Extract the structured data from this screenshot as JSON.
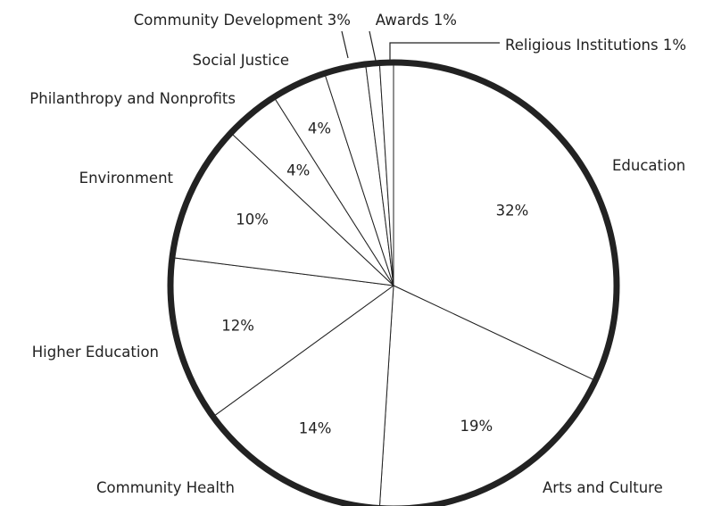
{
  "chart_data": {
    "type": "pie",
    "start": "12 o'clock",
    "direction": "clockwise",
    "slices": [
      {
        "label": "Education",
        "value": 32,
        "value_label": "32%"
      },
      {
        "label": "Arts and Culture",
        "value": 19,
        "value_label": "19%"
      },
      {
        "label": "Community Health",
        "value": 14,
        "value_label": "14%"
      },
      {
        "label": "Higher Education",
        "value": 12,
        "value_label": "12%"
      },
      {
        "label": "Environment",
        "value": 10,
        "value_label": "10%"
      },
      {
        "label": "Philanthropy and Nonprofits",
        "value": 4,
        "value_label": "4%"
      },
      {
        "label": "Social Justice",
        "value": 4,
        "value_label": "4%"
      },
      {
        "label": "Community Development",
        "value": 3,
        "value_label": "Community Development 3%"
      },
      {
        "label": "Awards",
        "value": 1,
        "value_label": "Awards 1%"
      },
      {
        "label": "Religious Institutions",
        "value": 1,
        "value_label": "Religious Institutions 1%"
      }
    ],
    "colors": {
      "fill": "#ffffff",
      "stroke": "#222222"
    }
  }
}
